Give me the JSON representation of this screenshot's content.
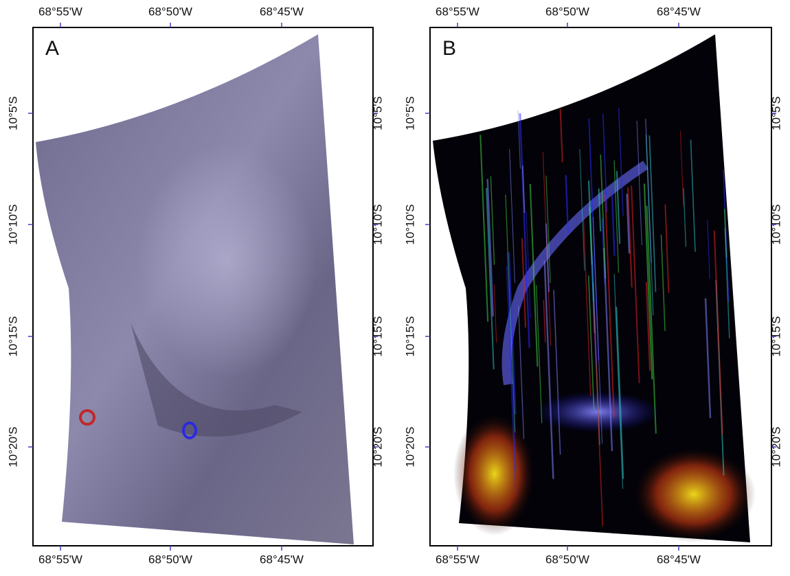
{
  "panels": [
    {
      "label": "A",
      "longitude_labels": [
        "68°55'W",
        "68°50'W",
        "68°45'W"
      ],
      "latitude_labels": [
        "10°5'S",
        "10°10'S",
        "10°15'S",
        "10°20'S"
      ]
    },
    {
      "label": "B",
      "longitude_labels": [
        "68°55'W",
        "68°50'W",
        "68°45'W"
      ],
      "latitude_labels": [
        "10°5'S",
        "10°10'S",
        "10°15'S",
        "10°20'S"
      ]
    }
  ]
}
